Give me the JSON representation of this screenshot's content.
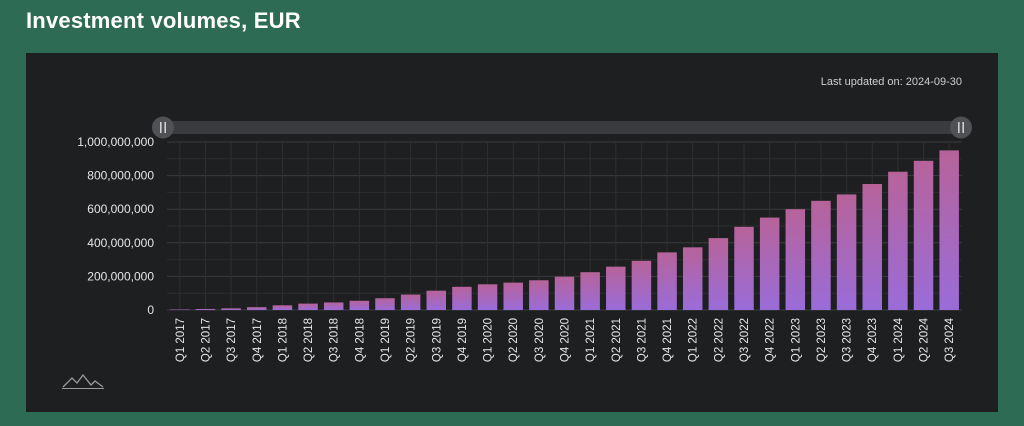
{
  "header": {
    "title": "Investment volumes, EUR"
  },
  "panel": {
    "updated_label": "Last updated on:",
    "updated_date": "2024-09-30"
  },
  "colors": {
    "background": "#2e6b54",
    "panel": "#1e1f21",
    "bar_top": "#b7639a",
    "bar_bottom": "#9a6cd9",
    "grid": "#3a3b3e"
  },
  "icons": {
    "range_handle": "pause-handle-icon",
    "logo": "mountain-logo-icon"
  },
  "chart_data": {
    "type": "bar",
    "title": "Investment volumes, EUR",
    "xlabel": "",
    "ylabel": "",
    "ylim": [
      0,
      1000000000
    ],
    "yticks": [
      0,
      200000000,
      400000000,
      600000000,
      800000000,
      1000000000
    ],
    "ytick_labels": [
      "0",
      "200,000,000",
      "400,000,000",
      "600,000,000",
      "800,000,000",
      "1,000,000,000"
    ],
    "grid": true,
    "categories": [
      "Q1 2017",
      "Q2 2017",
      "Q3 2017",
      "Q4 2017",
      "Q1 2018",
      "Q2 2018",
      "Q3 2018",
      "Q4 2018",
      "Q1 2019",
      "Q2 2019",
      "Q3 2019",
      "Q4 2019",
      "Q1 2020",
      "Q2 2020",
      "Q3 2020",
      "Q4 2020",
      "Q1 2021",
      "Q2 2021",
      "Q3 2021",
      "Q4 2021",
      "Q1 2022",
      "Q2 2022",
      "Q3 2022",
      "Q4 2022",
      "Q1 2023",
      "Q2 2023",
      "Q3 2023",
      "Q4 2023",
      "Q1 2024",
      "Q2 2024",
      "Q3 2024"
    ],
    "values": [
      2000000,
      6000000,
      10000000,
      17000000,
      28000000,
      38000000,
      45000000,
      55000000,
      70000000,
      92000000,
      115000000,
      138000000,
      153000000,
      163000000,
      177000000,
      198000000,
      225000000,
      258000000,
      293000000,
      343000000,
      373000000,
      428000000,
      495000000,
      550000000,
      600000000,
      650000000,
      688000000,
      750000000,
      823000000,
      888000000,
      950000000
    ]
  }
}
